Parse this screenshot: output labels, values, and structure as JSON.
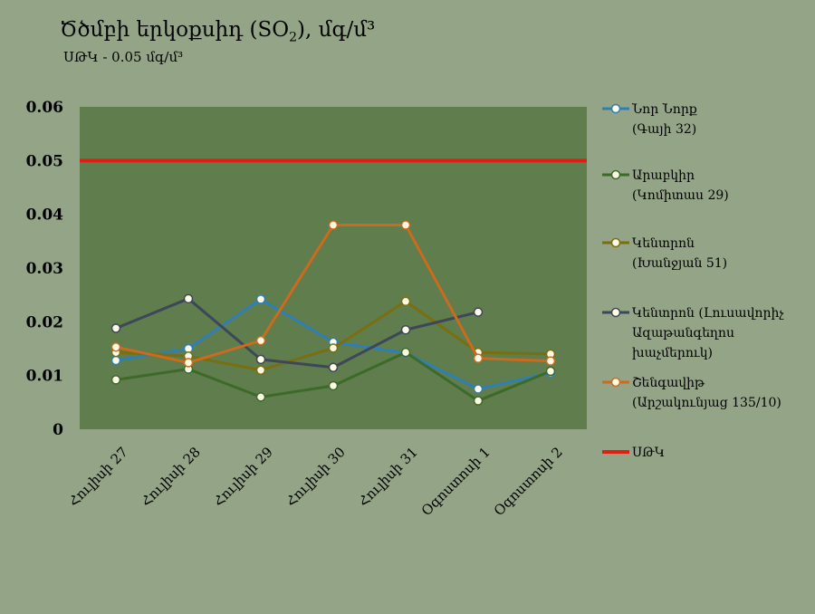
{
  "title_main": "Ծծմբի երկօքսիդ (SO",
  "title_sub": "2",
  "title_end": "), մգ/մ³",
  "subtitle": "ՍԹԿ - 0.05 մգ/մ³",
  "chart_data": {
    "type": "line",
    "categories": [
      "Հուլիսի 27",
      "Հուլիսի 28",
      "Հուլիսի 29",
      "Հուլիսի 30",
      "Հուլիսի 31",
      "Օգոստոսի 1",
      "Օգոստոսի 2"
    ],
    "ylim": [
      0,
      0.06
    ],
    "yticks": [
      "0",
      "0.01",
      "0.02",
      "0.03",
      "0.04",
      "0.05",
      "0.06"
    ],
    "plot_background": "#5f7d4d",
    "series": [
      {
        "name_lines": [
          "Նոր Նորք",
          "(Գայի 32)"
        ],
        "color": "#2f7fb5",
        "values": [
          0.0128,
          0.015,
          0.0242,
          0.0162,
          0.0142,
          0.0075,
          0.0105
        ]
      },
      {
        "name_lines": [
          "Արաբկիր",
          "(Կոմիտաս 29)"
        ],
        "color": "#3d6a28",
        "values": [
          0.0092,
          0.0112,
          0.006,
          0.0081,
          0.0143,
          0.0053,
          0.0108
        ]
      },
      {
        "name_lines": [
          "Կենտրոն",
          "(Խանջյան 51)"
        ],
        "color": "#7a6f10",
        "values": [
          0.0143,
          0.0136,
          0.011,
          0.0151,
          0.0238,
          0.0143,
          0.014
        ]
      },
      {
        "name_lines": [
          "Կենտրոն (Լուսավորիչ",
          "Ազաթանգեղոս",
          "խաչմերուկ)"
        ],
        "color": "#3e4758",
        "values": [
          0.0188,
          0.0243,
          0.013,
          0.0115,
          0.0185,
          0.0218,
          null
        ]
      },
      {
        "name_lines": [
          "Շենգավիթ",
          "(Արշակունյաց 135/10)"
        ],
        "color": "#cc6a1e",
        "values": [
          0.0153,
          0.0124,
          0.0165,
          0.038,
          0.038,
          0.0132,
          0.0127
        ]
      }
    ],
    "threshold": {
      "name": "ՍԹԿ",
      "value": 0.05,
      "color": "#e01e14"
    }
  }
}
